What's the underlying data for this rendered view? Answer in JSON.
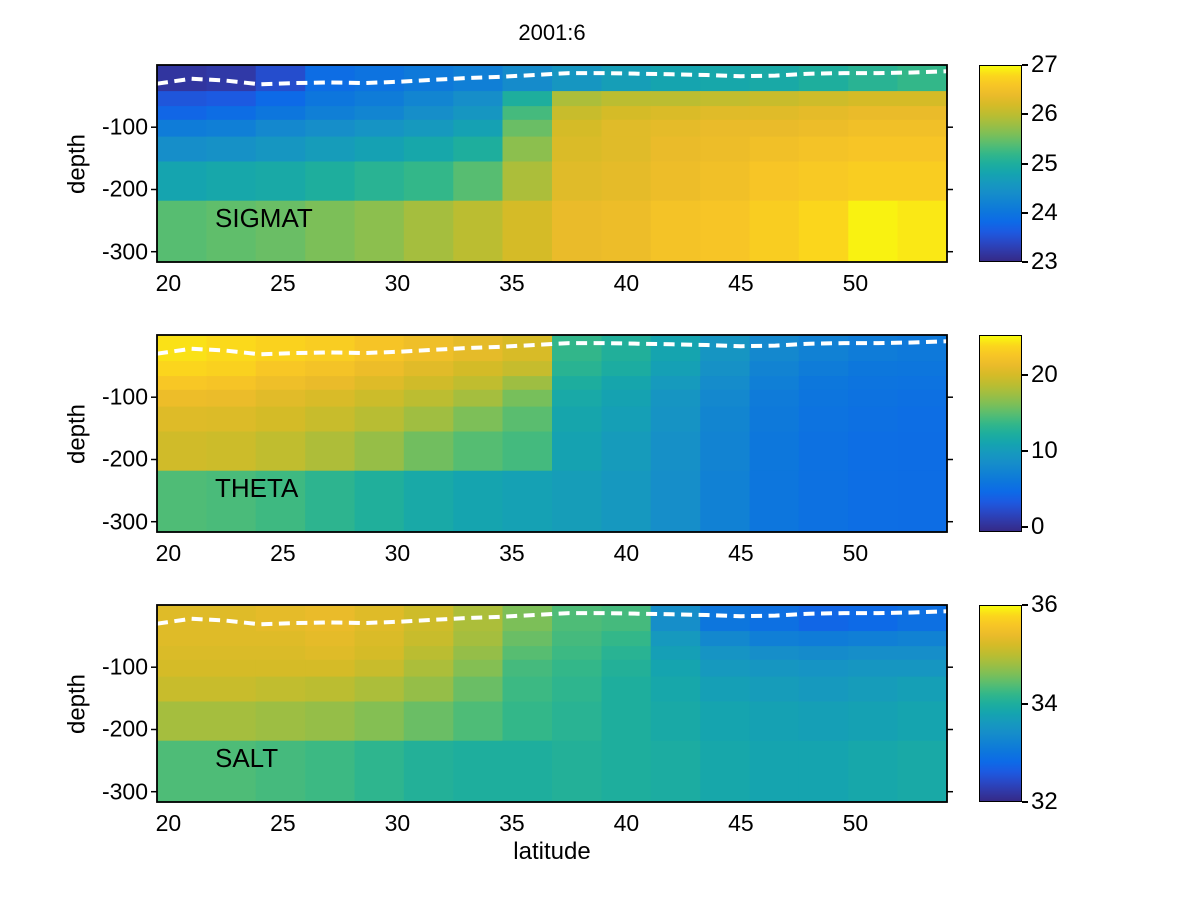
{
  "title": "2001:6",
  "xlabel": "latitude",
  "ylabel": "depth",
  "x_ticks": [
    20,
    25,
    30,
    35,
    40,
    45,
    50
  ],
  "y_ticks": [
    -100,
    -200,
    -300
  ],
  "axis": {
    "lat_min": 19.5,
    "lat_max": 54.0,
    "depth_min": -316.5,
    "depth_max": 0
  },
  "colormap": {
    "name": "parula",
    "stops": [
      [
        0.0,
        53,
        42,
        135
      ],
      [
        0.05,
        48,
        57,
        167
      ],
      [
        0.1,
        40,
        73,
        199
      ],
      [
        0.15,
        28,
        90,
        225
      ],
      [
        0.2,
        13,
        106,
        231
      ],
      [
        0.25,
        13,
        118,
        221
      ],
      [
        0.3,
        17,
        130,
        211
      ],
      [
        0.35,
        22,
        142,
        201
      ],
      [
        0.4,
        22,
        153,
        190
      ],
      [
        0.45,
        21,
        164,
        175
      ],
      [
        0.5,
        30,
        174,
        157
      ],
      [
        0.55,
        51,
        183,
        137
      ],
      [
        0.6,
        87,
        189,
        113
      ],
      [
        0.65,
        124,
        191,
        88
      ],
      [
        0.7,
        157,
        190,
        67
      ],
      [
        0.75,
        187,
        189,
        49
      ],
      [
        0.8,
        213,
        187,
        39
      ],
      [
        0.85,
        234,
        187,
        42
      ],
      [
        0.9,
        247,
        197,
        38
      ],
      [
        0.95,
        251,
        214,
        28
      ],
      [
        1.0,
        248,
        251,
        13
      ]
    ]
  },
  "mld_line": {
    "description": "white dashed mixed-layer-depth overlay, same in all panels",
    "color": "#ffffff",
    "lats": [
      19.5,
      21,
      22.5,
      24,
      25.5,
      27,
      28.5,
      30,
      31.5,
      33,
      34.5,
      36,
      37.5,
      39,
      40.5,
      42,
      43.5,
      45,
      46.5,
      48,
      49.5,
      51,
      52.5,
      54
    ],
    "depths": [
      -30,
      -22,
      -25,
      -31,
      -29,
      -28,
      -29,
      -27,
      -24,
      -21,
      -19,
      -16,
      -13,
      -13,
      -14,
      -15,
      -16,
      -18,
      -17,
      -14,
      -13,
      -13,
      -12,
      -10
    ]
  },
  "chart_data": [
    {
      "type": "heatmap",
      "title": "SIGMAT",
      "xlabel": "latitude",
      "ylabel": "depth",
      "lat_edges": [
        19.5,
        21.66,
        23.81,
        25.97,
        28.13,
        30.28,
        32.44,
        34.59,
        36.75,
        38.91,
        41.06,
        43.22,
        45.38,
        47.53,
        49.69,
        51.84,
        54.0
      ],
      "depth_edges": [
        0,
        -42,
        -66,
        -88,
        -115,
        -155,
        -218,
        -316.5
      ],
      "values": [
        [
          23.15,
          23.2,
          23.45,
          23.85,
          23.95,
          24.05,
          24.15,
          24.35,
          24.55,
          24.7,
          24.8,
          24.85,
          24.9,
          25.0,
          25.1,
          25.2
        ],
        [
          23.55,
          23.6,
          23.8,
          24.0,
          24.1,
          24.25,
          24.4,
          25.0,
          25.9,
          26.0,
          26.0,
          26.05,
          26.1,
          26.15,
          26.2,
          26.2
        ],
        [
          23.75,
          23.85,
          24.0,
          24.15,
          24.25,
          24.4,
          24.55,
          25.3,
          26.1,
          26.2,
          26.25,
          26.3,
          26.3,
          26.35,
          26.4,
          26.4
        ],
        [
          24.1,
          24.15,
          24.3,
          24.4,
          24.5,
          24.6,
          24.75,
          25.5,
          26.2,
          26.3,
          26.35,
          26.4,
          26.4,
          26.45,
          26.5,
          26.5
        ],
        [
          24.4,
          24.45,
          24.55,
          24.65,
          24.75,
          24.85,
          25.0,
          25.7,
          26.25,
          26.3,
          26.4,
          26.45,
          26.5,
          26.55,
          26.6,
          26.6
        ],
        [
          24.8,
          24.85,
          24.9,
          25.0,
          25.1,
          25.2,
          25.4,
          25.9,
          26.3,
          26.35,
          26.45,
          26.5,
          26.6,
          26.65,
          26.7,
          26.7
        ],
        [
          25.4,
          25.45,
          25.5,
          25.6,
          25.7,
          25.85,
          26.0,
          26.2,
          26.4,
          26.45,
          26.55,
          26.6,
          26.7,
          26.8,
          26.95,
          26.9
        ]
      ],
      "colorbar": {
        "vmin": 23,
        "vmax": 27,
        "ticks": [
          27,
          26,
          25,
          24,
          23
        ]
      }
    },
    {
      "type": "heatmap",
      "title": "THETA",
      "xlabel": "latitude",
      "ylabel": "depth",
      "lat_edges": [
        19.5,
        21.66,
        23.81,
        25.97,
        28.13,
        30.28,
        32.44,
        34.59,
        36.75,
        38.91,
        41.06,
        43.22,
        45.38,
        47.53,
        49.69,
        51.84,
        54.0
      ],
      "depth_edges": [
        0,
        -42,
        -66,
        -88,
        -115,
        -155,
        -218,
        -316.5
      ],
      "values": [
        [
          24.3,
          24.0,
          23.6,
          23.2,
          22.5,
          21.8,
          21.0,
          20.2,
          13.5,
          12.5,
          11.0,
          9.2,
          7.8,
          7.0,
          6.5,
          6.2
        ],
        [
          23.8,
          23.5,
          22.8,
          22.3,
          21.6,
          20.8,
          20.0,
          19.3,
          13.0,
          12.0,
          10.5,
          8.8,
          7.3,
          6.5,
          6.0,
          5.8
        ],
        [
          22.8,
          22.5,
          21.8,
          21.3,
          20.6,
          19.8,
          19.0,
          17.5,
          12.2,
          11.2,
          9.8,
          8.2,
          6.8,
          6.0,
          5.6,
          5.5
        ],
        [
          21.6,
          21.4,
          20.8,
          20.3,
          19.6,
          18.8,
          17.8,
          16.0,
          11.6,
          10.8,
          9.3,
          7.8,
          6.4,
          5.7,
          5.4,
          5.2
        ],
        [
          20.6,
          20.5,
          20.0,
          19.4,
          18.6,
          17.6,
          16.2,
          15.0,
          11.2,
          10.4,
          9.0,
          7.5,
          6.2,
          5.5,
          5.2,
          5.0
        ],
        [
          19.8,
          19.6,
          19.0,
          18.2,
          17.2,
          15.8,
          14.8,
          14.2,
          10.8,
          10.0,
          8.7,
          7.3,
          6.0,
          5.3,
          5.0,
          4.9
        ],
        [
          14.6,
          14.4,
          14.0,
          13.2,
          12.4,
          11.6,
          11.0,
          10.6,
          10.2,
          9.6,
          8.4,
          7.0,
          5.9,
          5.3,
          5.0,
          4.9
        ]
      ],
      "colorbar": {
        "vmin": -0.6,
        "vmax": 25.2,
        "ticks": [
          20,
          10,
          0
        ]
      }
    },
    {
      "type": "heatmap",
      "title": "SALT",
      "xlabel": "latitude",
      "ylabel": "depth",
      "lat_edges": [
        19.5,
        21.66,
        23.81,
        25.97,
        28.13,
        30.28,
        32.44,
        34.59,
        36.75,
        38.91,
        41.06,
        43.22,
        45.38,
        47.53,
        49.69,
        51.84,
        54.0
      ],
      "depth_edges": [
        0,
        -42,
        -66,
        -88,
        -115,
        -155,
        -218,
        -316.5
      ],
      "values": [
        [
          35.3,
          35.3,
          35.35,
          35.4,
          35.3,
          35.15,
          34.9,
          34.6,
          34.35,
          34.3,
          33.4,
          33.0,
          32.9,
          32.75,
          32.8,
          32.9
        ],
        [
          35.3,
          35.3,
          35.3,
          35.35,
          35.25,
          35.1,
          34.85,
          34.5,
          34.3,
          34.2,
          33.6,
          33.3,
          33.15,
          33.1,
          33.15,
          33.2
        ],
        [
          35.25,
          35.25,
          35.25,
          35.3,
          35.2,
          35.0,
          34.75,
          34.4,
          34.25,
          34.1,
          33.7,
          33.5,
          33.4,
          33.35,
          33.4,
          33.4
        ],
        [
          35.2,
          35.2,
          35.2,
          35.2,
          35.1,
          34.9,
          34.65,
          34.3,
          34.2,
          34.05,
          33.8,
          33.6,
          33.55,
          33.5,
          33.55,
          33.55
        ],
        [
          35.1,
          35.1,
          35.05,
          35.0,
          34.9,
          34.75,
          34.5,
          34.25,
          34.15,
          34.0,
          33.85,
          33.7,
          33.65,
          33.6,
          33.65,
          33.7
        ],
        [
          34.85,
          34.85,
          34.8,
          34.75,
          34.65,
          34.5,
          34.35,
          34.2,
          34.1,
          34.0,
          33.9,
          33.8,
          33.75,
          33.7,
          33.75,
          33.8
        ],
        [
          34.35,
          34.35,
          34.3,
          34.25,
          34.15,
          34.05,
          34.0,
          34.0,
          34.05,
          34.0,
          33.95,
          33.85,
          33.8,
          33.8,
          33.85,
          33.9
        ]
      ],
      "colorbar": {
        "vmin": 32,
        "vmax": 36,
        "ticks": [
          36,
          34,
          32
        ]
      }
    }
  ]
}
